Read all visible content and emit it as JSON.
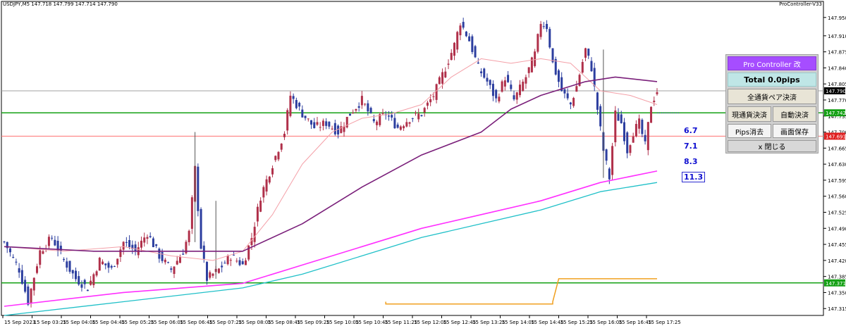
{
  "symbol_header": "USDJPY,M5  147.718 147.799 147.714 147.790",
  "ea_name": "ProController-V33",
  "colors": {
    "bull": "#b0304a",
    "bear": "#2c3e9f",
    "ema_fast": "#f4a0a8",
    "ema_mid": "#7a1f7a",
    "ema_slow": "#ff30ff",
    "ema_slowest": "#20c0c8",
    "support": "#14a014",
    "resistance": "#ff7070",
    "current": "#a0a0a0",
    "orange": "#f0a020"
  },
  "panel": {
    "title": "Pro Controller 改",
    "total": "Total   0.0pips",
    "close_all": "全通貨ペア決済",
    "close_current": "現通貨決済",
    "auto_close": "自動決済",
    "pips_clear": "Pips消去",
    "save_screen": "画面保存",
    "close_panel": "x 閉じる"
  },
  "pip_labels": [
    "6.7",
    "7.1",
    "8.3",
    "11.3"
  ],
  "chart_data": {
    "type": "candlestick",
    "timeframe": "M5",
    "symbol": "USDJPY",
    "ylim": [
      147.3,
      147.985
    ],
    "price_ticks": [
      "147.950",
      "147.910",
      "147.875",
      "147.840",
      "147.805",
      "147.770",
      "147.735",
      "147.700",
      "147.665",
      "147.630",
      "147.595",
      "147.560",
      "147.525",
      "147.490",
      "147.455",
      "147.420",
      "147.385",
      "147.350",
      "147.315"
    ],
    "x_ticks": [
      "15 Sep 2023",
      "15 Sep 03:25",
      "15 Sep 04:05",
      "15 Sep 04:45",
      "15 Sep 05:25",
      "15 Sep 06:05",
      "15 Sep 06:45",
      "15 Sep 07:25",
      "15 Sep 08:05",
      "15 Sep 08:45",
      "15 Sep 09:25",
      "15 Sep 10:05",
      "15 Sep 10:45",
      "15 Sep 11:25",
      "15 Sep 12:05",
      "15 Sep 12:45",
      "15 Sep 13:25",
      "15 Sep 14:05",
      "15 Sep 14:45",
      "15 Sep 15:25",
      "15 Sep 16:05",
      "15 Sep 16:45",
      "15 Sep 17:25"
    ],
    "hlines": [
      {
        "name": "current",
        "price": 147.79,
        "label": "147.790"
      },
      {
        "name": "support-upper",
        "price": 147.742,
        "label": "147.742"
      },
      {
        "name": "resistance",
        "price": 147.691,
        "label": "147.691"
      },
      {
        "name": "support-lower",
        "price": 147.371,
        "label": "147.371"
      }
    ],
    "price_path": [
      [
        0,
        147.46
      ],
      [
        5,
        147.4
      ],
      [
        8,
        147.33
      ],
      [
        12,
        147.44
      ],
      [
        16,
        147.47
      ],
      [
        20,
        147.42
      ],
      [
        24,
        147.38
      ],
      [
        28,
        147.36
      ],
      [
        32,
        147.42
      ],
      [
        36,
        147.4
      ],
      [
        40,
        147.46
      ],
      [
        44,
        147.44
      ],
      [
        48,
        147.48
      ],
      [
        52,
        147.43
      ],
      [
        56,
        147.4
      ],
      [
        60,
        147.44
      ],
      [
        62,
        147.48
      ],
      [
        64,
        147.62
      ],
      [
        66,
        147.45
      ],
      [
        68,
        147.38
      ],
      [
        72,
        147.4
      ],
      [
        76,
        147.43
      ],
      [
        80,
        147.41
      ],
      [
        83,
        147.47
      ],
      [
        86,
        147.56
      ],
      [
        90,
        147.63
      ],
      [
        94,
        147.7
      ],
      [
        96,
        147.78
      ],
      [
        100,
        147.74
      ],
      [
        104,
        147.71
      ],
      [
        108,
        147.72
      ],
      [
        112,
        147.7
      ],
      [
        116,
        147.74
      ],
      [
        120,
        147.77
      ],
      [
        124,
        147.72
      ],
      [
        128,
        147.74
      ],
      [
        132,
        147.71
      ],
      [
        136,
        147.73
      ],
      [
        140,
        147.74
      ],
      [
        144,
        147.78
      ],
      [
        148,
        147.84
      ],
      [
        151,
        147.89
      ],
      [
        153,
        147.94
      ],
      [
        156,
        147.9
      ],
      [
        159,
        147.84
      ],
      [
        162,
        147.81
      ],
      [
        165,
        147.77
      ],
      [
        168,
        147.82
      ],
      [
        171,
        147.77
      ],
      [
        175,
        147.82
      ],
      [
        178,
        147.87
      ],
      [
        180,
        147.94
      ],
      [
        182,
        147.93
      ],
      [
        184,
        147.85
      ],
      [
        187,
        147.79
      ],
      [
        190,
        147.76
      ],
      [
        192,
        147.8
      ],
      [
        195,
        147.88
      ],
      [
        197,
        147.84
      ],
      [
        199,
        147.75
      ],
      [
        201,
        147.66
      ],
      [
        203,
        147.6
      ],
      [
        205,
        147.74
      ],
      [
        207,
        147.72
      ],
      [
        209,
        147.66
      ],
      [
        211,
        147.7
      ],
      [
        213,
        147.72
      ],
      [
        215,
        147.67
      ],
      [
        217,
        147.76
      ],
      [
        219,
        147.79
      ]
    ],
    "series": [
      {
        "name": "EMA fast",
        "points": [
          [
            0,
            147.45
          ],
          [
            20,
            147.44
          ],
          [
            40,
            147.45
          ],
          [
            56,
            147.43
          ],
          [
            70,
            147.42
          ],
          [
            80,
            147.44
          ],
          [
            90,
            147.52
          ],
          [
            100,
            147.63
          ],
          [
            110,
            147.7
          ],
          [
            120,
            147.73
          ],
          [
            130,
            147.74
          ],
          [
            140,
            147.76
          ],
          [
            150,
            147.82
          ],
          [
            160,
            147.86
          ],
          [
            170,
            147.85
          ],
          [
            180,
            147.86
          ],
          [
            190,
            147.85
          ],
          [
            200,
            147.79
          ],
          [
            210,
            147.78
          ],
          [
            219,
            147.76
          ]
        ]
      },
      {
        "name": "EMA mid",
        "points": [
          [
            0,
            147.45
          ],
          [
            30,
            147.44
          ],
          [
            60,
            147.44
          ],
          [
            80,
            147.44
          ],
          [
            100,
            147.5
          ],
          [
            120,
            147.58
          ],
          [
            140,
            147.65
          ],
          [
            160,
            147.7
          ],
          [
            170,
            147.75
          ],
          [
            180,
            147.78
          ],
          [
            195,
            147.81
          ],
          [
            205,
            147.82
          ],
          [
            219,
            147.81
          ]
        ]
      },
      {
        "name": "EMA slow",
        "points": [
          [
            0,
            147.32
          ],
          [
            40,
            147.35
          ],
          [
            80,
            147.37
          ],
          [
            100,
            147.41
          ],
          [
            120,
            147.45
          ],
          [
            140,
            147.49
          ],
          [
            160,
            147.52
          ],
          [
            180,
            147.55
          ],
          [
            200,
            147.59
          ],
          [
            219,
            147.615
          ]
        ]
      },
      {
        "name": "EMA slowest",
        "points": [
          [
            0,
            147.3
          ],
          [
            40,
            147.33
          ],
          [
            80,
            147.36
          ],
          [
            100,
            147.39
          ],
          [
            120,
            147.43
          ],
          [
            140,
            147.47
          ],
          [
            160,
            147.5
          ],
          [
            180,
            147.53
          ],
          [
            200,
            147.57
          ],
          [
            219,
            147.59
          ]
        ]
      }
    ],
    "orange_step": [
      [
        128,
        147.33
      ],
      [
        128,
        147.325
      ],
      [
        184,
        147.325
      ],
      [
        184,
        147.33
      ],
      [
        186,
        147.38
      ],
      [
        219,
        147.38
      ]
    ],
    "n_candles": 220
  }
}
